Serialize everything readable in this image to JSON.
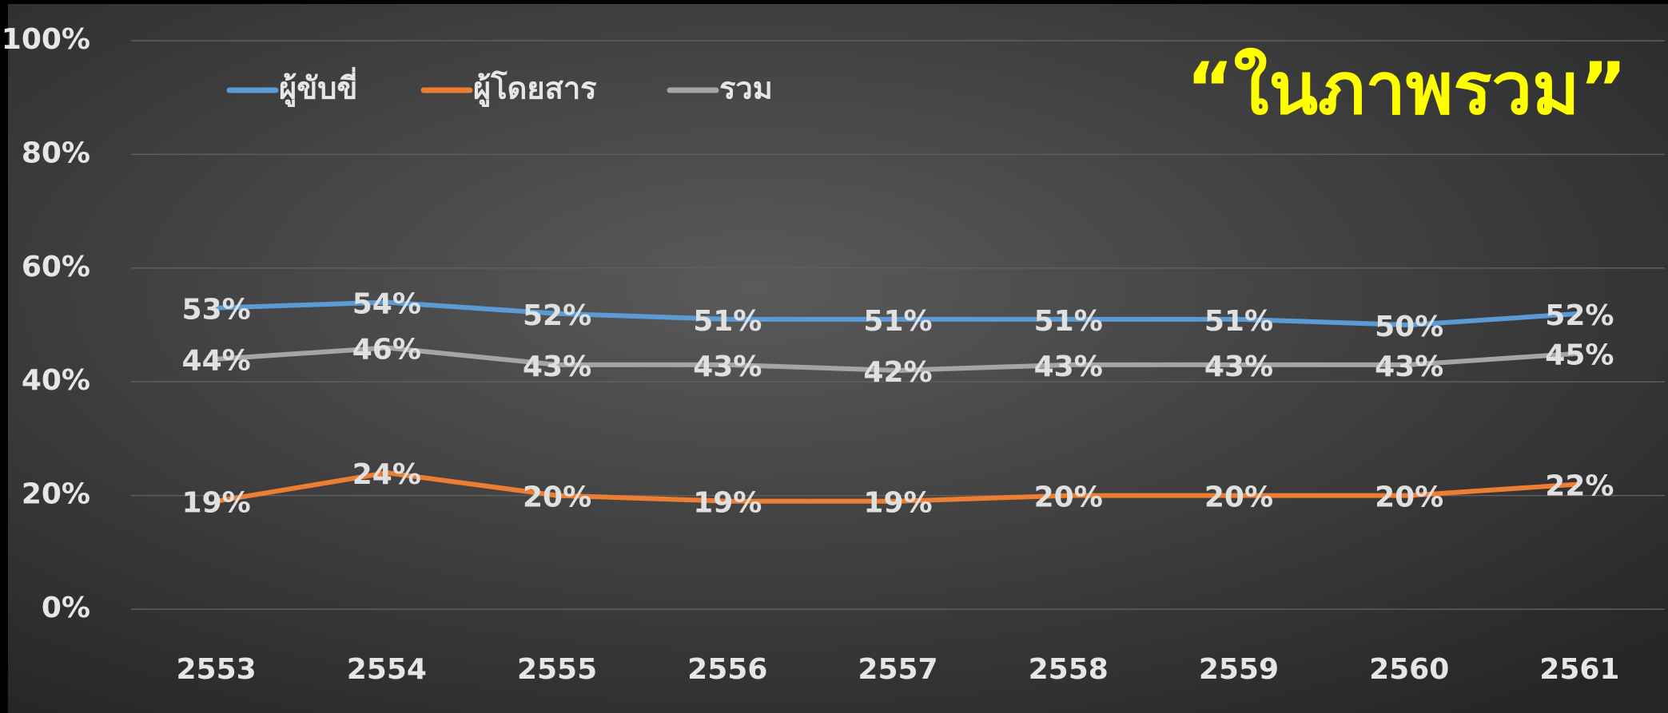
{
  "chart_data": {
    "type": "line",
    "annotation": "“ในภาพรวม”",
    "categories": [
      "2553",
      "2554",
      "2555",
      "2556",
      "2557",
      "2558",
      "2559",
      "2560",
      "2561"
    ],
    "series": [
      {
        "name": "ผู้ขับขี่",
        "color": "#5b9bd5",
        "values": [
          53,
          54,
          52,
          51,
          51,
          51,
          51,
          50,
          52
        ],
        "value_labels": [
          "53%",
          "54%",
          "52%",
          "51%",
          "51%",
          "51%",
          "51%",
          "50%",
          "52%"
        ]
      },
      {
        "name": "ผู้โดยสาร",
        "color": "#ed7d31",
        "values": [
          19,
          24,
          20,
          19,
          19,
          20,
          20,
          20,
          22
        ],
        "value_labels": [
          "19%",
          "24%",
          "20%",
          "19%",
          "19%",
          "20%",
          "20%",
          "20%",
          "22%"
        ]
      },
      {
        "name": "รวม",
        "color": "#a5a5a5",
        "values": [
          44,
          46,
          43,
          43,
          42,
          43,
          43,
          43,
          45
        ],
        "value_labels": [
          "44%",
          "46%",
          "43%",
          "43%",
          "42%",
          "43%",
          "43%",
          "43%",
          "45%"
        ]
      }
    ],
    "ylim": [
      0,
      100
    ],
    "yticks": [
      {
        "value": 0,
        "label": "0%"
      },
      {
        "value": 20,
        "label": "20%"
      },
      {
        "value": 40,
        "label": "40%"
      },
      {
        "value": 60,
        "label": "60%"
      },
      {
        "value": 80,
        "label": "80%"
      },
      {
        "value": 100,
        "label": "100%"
      }
    ],
    "grid": true,
    "legend": "top-left"
  }
}
